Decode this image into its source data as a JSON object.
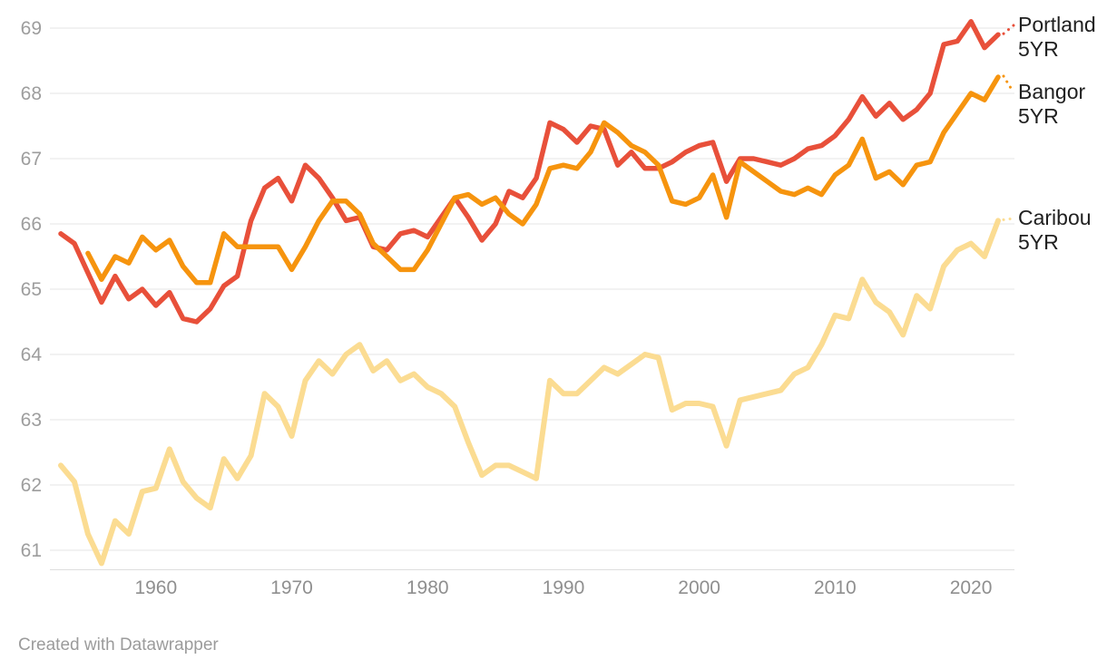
{
  "chart_data": {
    "type": "line",
    "title": "",
    "xlabel": "",
    "ylabel": "",
    "grid": "horizontal",
    "legend_position": "right-end-labels",
    "y_ticks": [
      61,
      62,
      63,
      64,
      65,
      66,
      67,
      68,
      69
    ],
    "x_ticks": [
      "1960",
      "1970",
      "1980",
      "1990",
      "2000",
      "2010",
      "2020"
    ],
    "x_tick_years": [
      1960,
      1970,
      1980,
      1990,
      2000,
      2010,
      2020
    ],
    "x_range": [
      1953,
      2022
    ],
    "y_axis_min_drawn": 60.7,
    "y_axis_max_drawn": 69,
    "years": [
      1953,
      1954,
      1955,
      1956,
      1957,
      1958,
      1959,
      1960,
      1961,
      1962,
      1963,
      1964,
      1965,
      1966,
      1967,
      1968,
      1969,
      1970,
      1971,
      1972,
      1973,
      1974,
      1975,
      1976,
      1977,
      1978,
      1979,
      1980,
      1981,
      1982,
      1983,
      1984,
      1985,
      1986,
      1987,
      1988,
      1989,
      1990,
      1991,
      1992,
      1993,
      1994,
      1995,
      1996,
      1997,
      1998,
      1999,
      2000,
      2001,
      2002,
      2003,
      2004,
      2005,
      2006,
      2007,
      2008,
      2009,
      2010,
      2011,
      2012,
      2013,
      2014,
      2015,
      2016,
      2017,
      2018,
      2019,
      2020,
      2021,
      2022
    ],
    "series": [
      {
        "name": "Portland",
        "period": "5YR",
        "color": "#e8503a",
        "values": [
          65.85,
          65.7,
          65.25,
          64.8,
          65.2,
          64.85,
          65.0,
          64.75,
          64.95,
          64.55,
          64.5,
          64.7,
          65.05,
          65.2,
          66.05,
          66.55,
          66.7,
          66.35,
          66.9,
          66.7,
          66.4,
          66.05,
          66.1,
          65.65,
          65.6,
          65.85,
          65.9,
          65.8,
          66.1,
          66.4,
          66.1,
          65.75,
          66.0,
          66.5,
          66.4,
          66.7,
          67.55,
          67.45,
          67.25,
          67.5,
          67.45,
          66.9,
          67.1,
          66.85,
          66.85,
          66.95,
          67.1,
          67.2,
          67.25,
          66.65,
          67.0,
          67.0,
          66.95,
          66.9,
          67.0,
          67.15,
          67.2,
          67.35,
          67.6,
          67.95,
          67.65,
          67.85,
          67.6,
          67.75,
          68.0,
          68.75,
          68.8,
          69.1,
          68.7,
          68.9
        ]
      },
      {
        "name": "Bangor",
        "period": "5YR",
        "color": "#f6940e",
        "values": [
          null,
          null,
          65.55,
          65.15,
          65.5,
          65.4,
          65.8,
          65.6,
          65.75,
          65.35,
          65.1,
          65.1,
          65.85,
          65.65,
          65.65,
          65.65,
          65.65,
          65.3,
          65.65,
          66.05,
          66.35,
          66.35,
          66.15,
          65.7,
          65.5,
          65.3,
          65.3,
          65.6,
          66.0,
          66.4,
          66.45,
          66.3,
          66.4,
          66.15,
          66.0,
          66.3,
          66.85,
          66.9,
          66.85,
          67.1,
          67.55,
          67.4,
          67.2,
          67.1,
          66.9,
          66.35,
          66.3,
          66.4,
          66.75,
          66.1,
          66.95,
          66.8,
          66.65,
          66.5,
          66.45,
          66.55,
          66.45,
          66.75,
          66.9,
          67.3,
          66.7,
          66.8,
          66.6,
          66.9,
          66.95,
          67.4,
          67.7,
          68.0,
          67.9,
          68.25
        ]
      },
      {
        "name": "Caribou",
        "period": "5YR",
        "color": "#fbdc92",
        "values": [
          62.3,
          62.05,
          61.25,
          60.8,
          61.45,
          61.25,
          61.9,
          61.95,
          62.55,
          62.05,
          61.8,
          61.65,
          62.4,
          62.1,
          62.45,
          63.4,
          63.2,
          62.75,
          63.6,
          63.9,
          63.7,
          64.0,
          64.15,
          63.75,
          63.9,
          63.6,
          63.7,
          63.5,
          63.4,
          63.2,
          62.65,
          62.15,
          62.3,
          62.3,
          62.2,
          62.1,
          63.6,
          63.4,
          63.4,
          63.6,
          63.8,
          63.7,
          63.85,
          64.0,
          63.95,
          63.15,
          63.25,
          63.25,
          63.2,
          62.6,
          63.3,
          63.35,
          63.4,
          63.45,
          63.7,
          63.8,
          64.15,
          64.6,
          64.55,
          65.15,
          64.8,
          64.65,
          64.3,
          64.9,
          64.7,
          65.35,
          65.6,
          65.7,
          65.5,
          66.05
        ]
      }
    ]
  },
  "colors": {
    "gridline": "#e6e6e6",
    "axis_baseline": "#dedede",
    "y_tick_label": "#9d9d9d",
    "x_tick_label": "#8f8f8f",
    "series_label_text": "#202020",
    "footer_text": "#9b9b9b",
    "background": "#ffffff"
  },
  "footer": {
    "text": "Created with Datawrapper"
  }
}
